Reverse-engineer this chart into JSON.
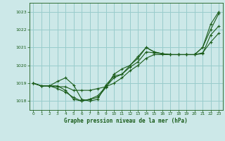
{
  "bg_color": "#cce8e8",
  "grid_color": "#99cccc",
  "line_color": "#1a5c1a",
  "xlabel": "Graphe pression niveau de la mer (hPa)",
  "xlim": [
    -0.5,
    23.5
  ],
  "ylim": [
    1017.5,
    1023.5
  ],
  "yticks": [
    1018,
    1019,
    1020,
    1021,
    1022,
    1023
  ],
  "xticks": [
    0,
    1,
    2,
    3,
    4,
    5,
    6,
    7,
    8,
    9,
    10,
    11,
    12,
    13,
    14,
    15,
    16,
    17,
    18,
    19,
    20,
    21,
    22,
    23
  ],
  "series": [
    [
      1019.0,
      1018.85,
      1018.85,
      1018.85,
      1018.6,
      1018.1,
      1018.0,
      1018.1,
      1018.2,
      1018.75,
      1019.5,
      1019.8,
      1020.0,
      1020.5,
      1021.0,
      1020.75,
      1020.65,
      1020.6,
      1020.6,
      1020.6,
      1020.6,
      1021.0,
      1022.3,
      1023.0
    ],
    [
      1019.0,
      1018.85,
      1018.85,
      1018.7,
      1018.5,
      1018.2,
      1018.0,
      1018.1,
      1018.3,
      1018.8,
      1019.3,
      1019.5,
      1019.9,
      1020.2,
      1020.75,
      1020.7,
      1020.65,
      1020.6,
      1020.6,
      1020.6,
      1020.6,
      1020.65,
      1021.7,
      1022.2
    ],
    [
      1019.0,
      1018.85,
      1018.85,
      1018.8,
      1018.8,
      1018.6,
      1018.6,
      1018.6,
      1018.7,
      1018.8,
      1019.0,
      1019.3,
      1019.7,
      1020.0,
      1020.4,
      1020.6,
      1020.6,
      1020.6,
      1020.6,
      1020.6,
      1020.6,
      1020.7,
      1021.3,
      1021.8
    ],
    [
      1019.0,
      1018.85,
      1018.85,
      1019.1,
      1019.3,
      1018.9,
      1018.1,
      1018.0,
      1018.1,
      1018.9,
      1019.4,
      1019.5,
      1020.0,
      1020.4,
      1021.0,
      1020.75,
      1020.65,
      1020.6,
      1020.6,
      1020.6,
      1020.6,
      1021.0,
      1022.0,
      1022.9
    ]
  ]
}
